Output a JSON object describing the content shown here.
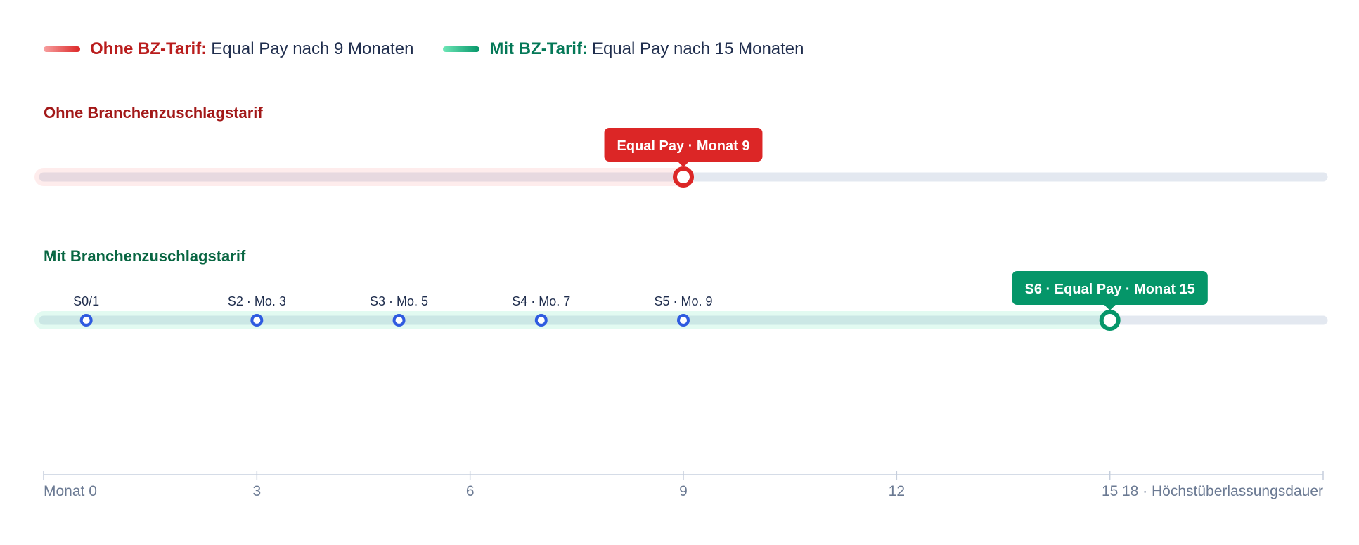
{
  "legend": {
    "items": [
      {
        "key": "Ohne BZ-Tarif:",
        "text": "Equal Pay nach 9 Monaten",
        "color": "#dc2626"
      },
      {
        "key": "Mit BZ-Tarif:",
        "text": "Equal Pay nach 15 Monaten",
        "color": "#059669"
      }
    ]
  },
  "chart_data": {
    "type": "timeline",
    "title": "",
    "xlabel": "",
    "xlim": [
      0,
      18
    ],
    "x_ticks": [
      {
        "value": 0,
        "label": "Monat 0"
      },
      {
        "value": 3,
        "label": "3"
      },
      {
        "value": 6,
        "label": "6"
      },
      {
        "value": 9,
        "label": "9"
      },
      {
        "value": 12,
        "label": "12"
      },
      {
        "value": 15,
        "label": "15"
      },
      {
        "value": 18,
        "label": "18 · Höchstüberlassungsdauer"
      }
    ],
    "series": [
      {
        "name": "Ohne Branchenzuschlagstarif",
        "color": "#dc2626",
        "color_start": "#f8a1a1",
        "end": 9,
        "end_label": "Equal Pay · Monat 9",
        "milestones": []
      },
      {
        "name": "Mit Branchenzuschlagstarif",
        "color": "#059669",
        "color_start": "#6ee7b7",
        "end": 15,
        "end_label": "S6 · Equal Pay · Monat 15",
        "milestones": [
          {
            "value": 0.6,
            "label": "S0/1"
          },
          {
            "value": 3,
            "label": "S2 · Mo. 3"
          },
          {
            "value": 5,
            "label": "S3 · Mo. 5"
          },
          {
            "value": 7,
            "label": "S4 · Mo. 7"
          },
          {
            "value": 9,
            "label": "S5 · Mo. 9"
          }
        ]
      }
    ]
  }
}
